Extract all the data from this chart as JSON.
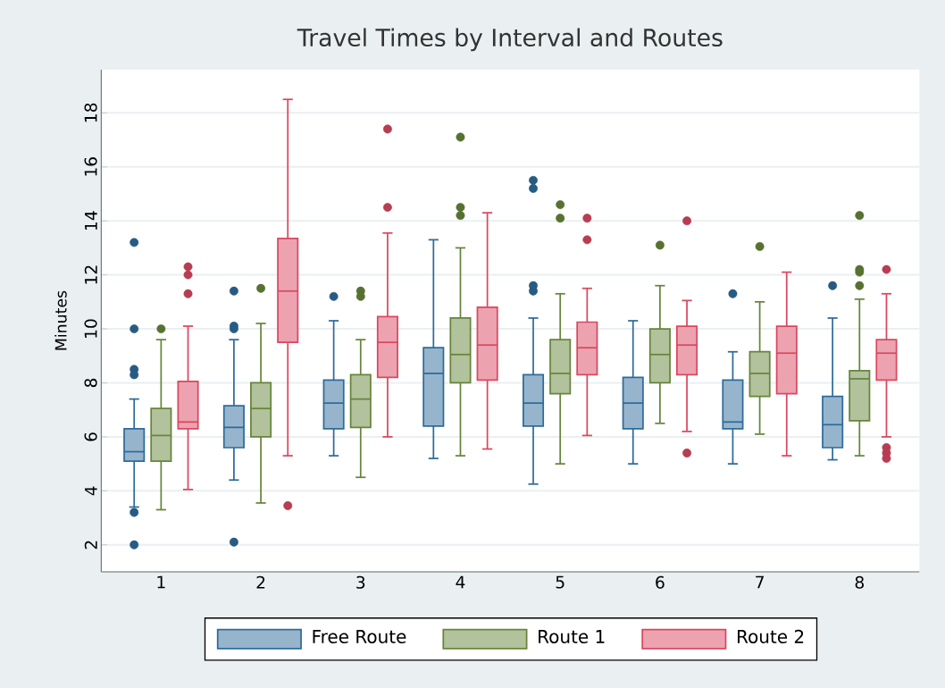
{
  "chart_data": {
    "type": "box",
    "title": "Travel Times by Interval and Routes",
    "ylabel": "Minutes",
    "categories": [
      "1",
      "2",
      "3",
      "4",
      "5",
      "6",
      "7",
      "8"
    ],
    "ylim": [
      1,
      19.6
    ],
    "yticks": [
      2,
      4,
      6,
      8,
      10,
      12,
      14,
      16,
      18
    ],
    "grid": "y",
    "legend": "bottom",
    "marker": "circle",
    "series": [
      {
        "name": "Free Route",
        "color": "#2e6b9a",
        "boxes": [
          {
            "low": 3.4,
            "q1": 5.1,
            "median": 5.45,
            "q3": 6.3,
            "high": 7.4,
            "outliers": [
              13.2,
              10,
              8.5,
              8.3,
              3.2,
              2.0
            ]
          },
          {
            "low": 4.4,
            "q1": 5.6,
            "median": 6.35,
            "q3": 7.15,
            "high": 9.6,
            "outliers": [
              11.4,
              10.1,
              10.0,
              2.1
            ]
          },
          {
            "low": 5.3,
            "q1": 6.3,
            "median": 7.25,
            "q3": 8.1,
            "high": 10.3,
            "outliers": [
              11.2
            ]
          },
          {
            "low": 5.2,
            "q1": 6.4,
            "median": 8.35,
            "q3": 9.3,
            "high": 13.3
          },
          {
            "low": 4.25,
            "q1": 6.4,
            "median": 7.25,
            "q3": 8.3,
            "high": 10.4,
            "outliers": [
              15.5,
              15.2,
              11.6,
              11.4
            ]
          },
          {
            "low": 5.0,
            "q1": 6.3,
            "median": 7.25,
            "q3": 8.2,
            "high": 10.3
          },
          {
            "low": 5.0,
            "q1": 6.3,
            "median": 6.55,
            "q3": 8.1,
            "high": 9.15,
            "outliers": [
              11.3
            ]
          },
          {
            "low": 5.15,
            "q1": 5.6,
            "median": 6.45,
            "q3": 7.5,
            "high": 10.4,
            "outliers": [
              11.6
            ]
          }
        ]
      },
      {
        "name": "Route 1",
        "color": "#66853a",
        "boxes": [
          {
            "low": 3.3,
            "q1": 5.1,
            "median": 6.05,
            "q3": 7.05,
            "high": 9.6,
            "outliers": [
              10
            ]
          },
          {
            "low": 3.55,
            "q1": 6.0,
            "median": 7.05,
            "q3": 8.0,
            "high": 10.2,
            "outliers": [
              11.5
            ]
          },
          {
            "low": 4.5,
            "q1": 6.35,
            "median": 7.4,
            "q3": 8.3,
            "high": 9.6,
            "outliers": [
              11.4,
              11.2
            ]
          },
          {
            "low": 5.3,
            "q1": 8.0,
            "median": 9.05,
            "q3": 10.4,
            "high": 13.0,
            "outliers": [
              17.1,
              14.5,
              14.2
            ]
          },
          {
            "low": 5.0,
            "q1": 7.6,
            "median": 8.35,
            "q3": 9.6,
            "high": 11.3,
            "outliers": [
              14.6,
              14.1
            ]
          },
          {
            "low": 6.5,
            "q1": 8.0,
            "median": 9.05,
            "q3": 10.0,
            "high": 11.6,
            "outliers": [
              13.1
            ]
          },
          {
            "low": 6.1,
            "q1": 7.5,
            "median": 8.35,
            "q3": 9.15,
            "high": 11.0,
            "outliers": [
              13.05
            ]
          },
          {
            "low": 5.3,
            "q1": 6.6,
            "median": 8.15,
            "q3": 8.45,
            "high": 11.1,
            "outliers": [
              14.2,
              12.2,
              12.1,
              11.6
            ]
          }
        ]
      },
      {
        "name": "Route 2",
        "color": "#d9485f",
        "boxes": [
          {
            "low": 4.05,
            "q1": 6.3,
            "median": 6.55,
            "q3": 8.05,
            "high": 10.1,
            "outliers": [
              12.3,
              12.0,
              11.3
            ]
          },
          {
            "low": 5.3,
            "q1": 9.5,
            "median": 11.4,
            "q3": 13.35,
            "high": 18.5,
            "outliers": [
              3.45
            ]
          },
          {
            "low": 6.0,
            "q1": 8.2,
            "median": 9.5,
            "q3": 10.45,
            "high": 13.55,
            "outliers": [
              17.4,
              14.5
            ]
          },
          {
            "low": 5.55,
            "q1": 8.1,
            "median": 9.4,
            "q3": 10.8,
            "high": 14.3
          },
          {
            "low": 6.05,
            "q1": 8.3,
            "median": 9.3,
            "q3": 10.25,
            "high": 11.5,
            "outliers": [
              14.1,
              13.3
            ]
          },
          {
            "low": 6.2,
            "q1": 8.3,
            "median": 9.4,
            "q3": 10.1,
            "high": 11.05,
            "outliers": [
              14.0,
              5.4
            ]
          },
          {
            "low": 5.3,
            "q1": 7.6,
            "median": 9.1,
            "q3": 10.1,
            "high": 12.1
          },
          {
            "low": 6.0,
            "q1": 8.1,
            "median": 9.1,
            "q3": 9.6,
            "high": 11.3,
            "outliers": [
              12.2,
              5.6,
              5.4,
              5.2
            ]
          }
        ]
      }
    ]
  }
}
